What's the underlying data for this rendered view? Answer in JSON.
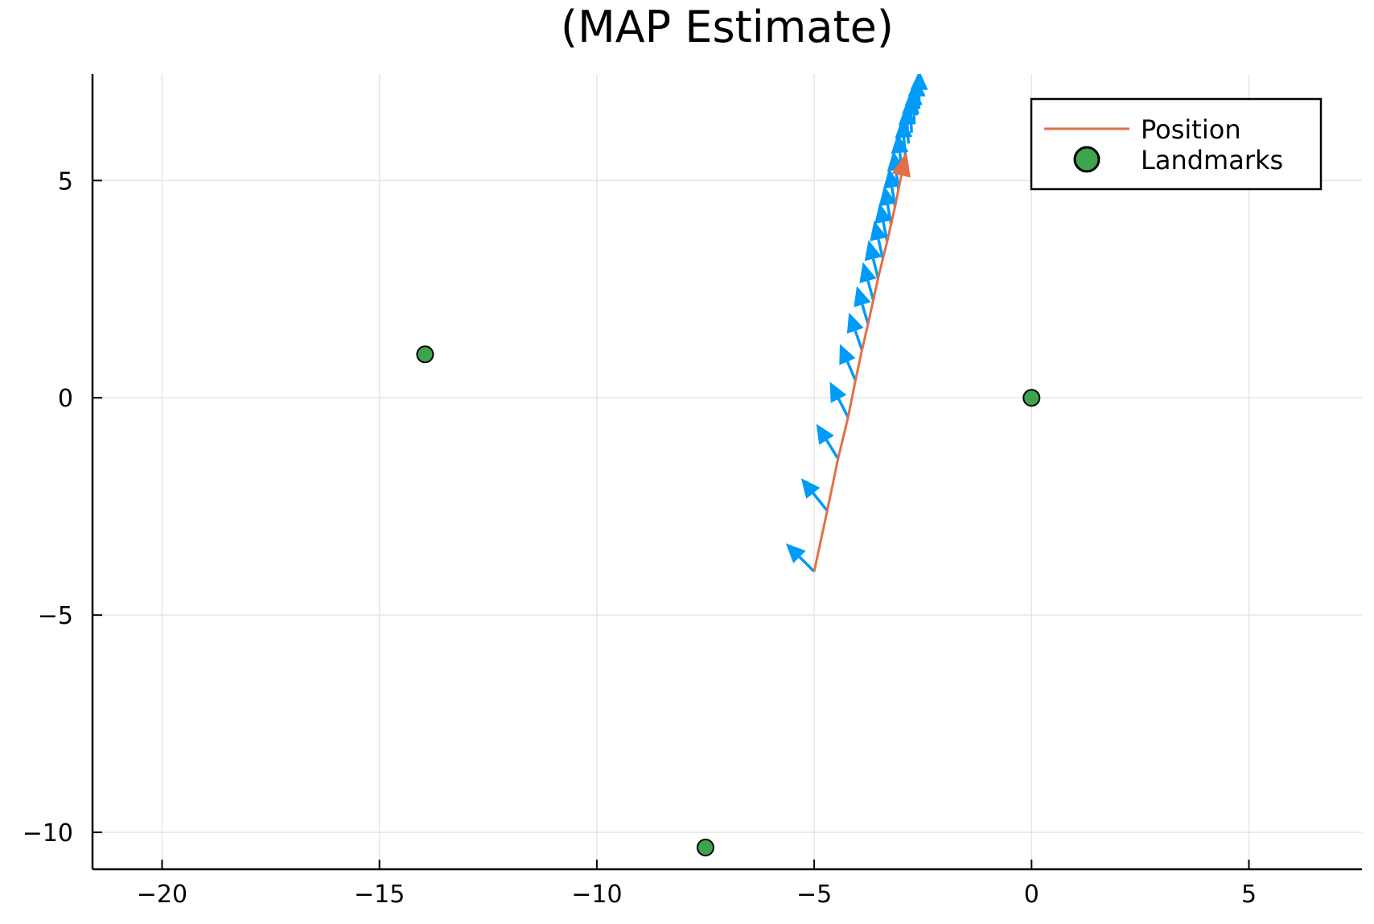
{
  "chart_data": {
    "type": "line",
    "title": "(MAP Estimate)",
    "xlabel": "",
    "ylabel": "",
    "xlim": [
      -21.6,
      7.6
    ],
    "ylim": [
      -10.85,
      7.45
    ],
    "xticks": [
      -20,
      -15,
      -10,
      -5,
      0,
      5
    ],
    "yticks": [
      -10,
      -5,
      0,
      5
    ],
    "grid": true,
    "legend_position": "top-right",
    "colors": {
      "position": "#e26f46",
      "heading": "#009af9",
      "landmarks": "#3da44d"
    },
    "series": [
      {
        "name": "Position",
        "type": "line",
        "x": [
          -5.0,
          -4.7,
          -4.45,
          -4.22,
          -4.05,
          -3.9,
          -3.76,
          -3.64,
          -3.53,
          -3.42,
          -3.32,
          -3.23,
          -3.14,
          -3.06,
          -2.98,
          -2.9
        ],
        "y": [
          -4.0,
          -2.6,
          -1.4,
          -0.45,
          0.4,
          1.1,
          1.7,
          2.25,
          2.75,
          3.2,
          3.6,
          4.0,
          4.4,
          4.8,
          5.2,
          5.55
        ]
      },
      {
        "name": "Landmarks",
        "type": "scatter",
        "x": [
          -13.95,
          -7.5,
          0.0
        ],
        "y": [
          1.0,
          -10.35,
          0.0
        ]
      }
    ],
    "heading_arrows": {
      "x": [
        -5.0,
        -4.7,
        -4.45,
        -4.22,
        -4.05,
        -3.9,
        -3.76,
        -3.64,
        -3.53,
        -3.42,
        -3.32,
        -3.23,
        -3.14,
        -3.06,
        -2.98,
        -2.9,
        -2.83,
        -2.76,
        -2.7,
        -2.64,
        -2.59
      ],
      "y": [
        -4.0,
        -2.6,
        -1.4,
        -0.45,
        0.4,
        1.1,
        1.7,
        2.25,
        2.75,
        3.2,
        3.6,
        4.0,
        4.4,
        4.8,
        5.2,
        5.55,
        5.85,
        6.1,
        6.3,
        6.5,
        6.65
      ],
      "dx": [
        -0.65,
        -0.6,
        -0.5,
        -0.42,
        -0.36,
        -0.3,
        -0.26,
        -0.24,
        -0.22,
        -0.2,
        -0.18,
        -0.16,
        -0.14,
        -0.12,
        -0.1,
        -0.08,
        -0.06,
        -0.04,
        -0.02,
        0.0,
        0.01
      ],
      "dy": [
        0.65,
        0.75,
        0.8,
        0.82,
        0.84,
        0.86,
        0.87,
        0.87,
        0.88,
        0.88,
        0.88,
        0.88,
        0.88,
        0.88,
        0.88,
        0.88,
        0.88,
        0.88,
        0.88,
        0.88,
        0.88
      ]
    }
  }
}
